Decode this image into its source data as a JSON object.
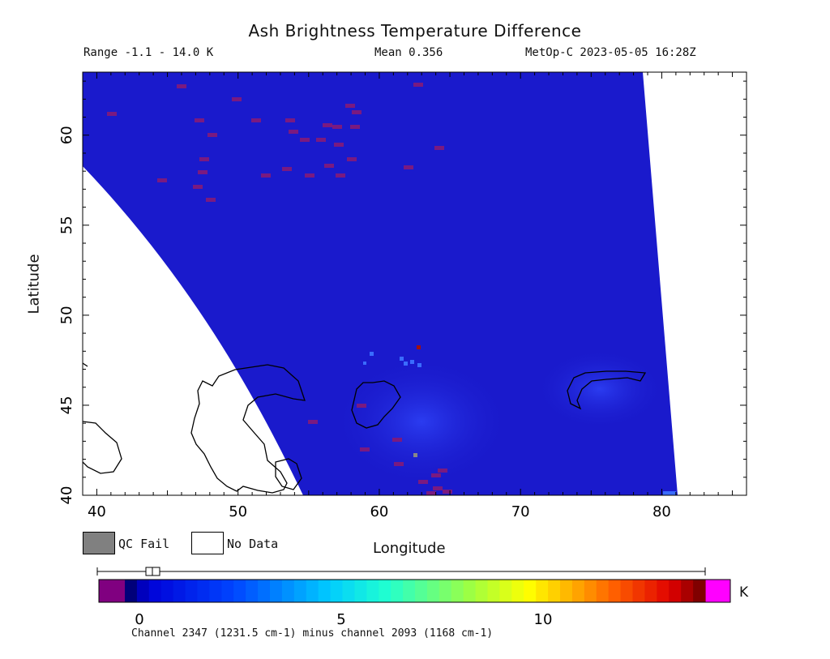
{
  "title": "Ash Brightness Temperature Difference",
  "stats": {
    "range": "Range -1.1 - 14.0 K",
    "mean": "Mean 0.356",
    "satellite": "MetOp-C 2023-05-05 16:28Z"
  },
  "axes": {
    "xlabel": "Longitude",
    "ylabel": "Latitude",
    "x_ticks": [
      "40",
      "50",
      "60",
      "70",
      "80"
    ],
    "y_ticks": [
      "60",
      "55",
      "50",
      "45",
      "40"
    ],
    "xlim": [
      39,
      86
    ],
    "ylim": [
      40,
      63.5
    ]
  },
  "legend": {
    "qc_fail": "QC Fail",
    "no_data": "No Data"
  },
  "colorbar": {
    "ticks": [
      "0",
      "5",
      "10"
    ],
    "min": -1.1,
    "max": 14.0,
    "unit": "K",
    "caption": "Channel 2347 (1231.5 cm-1) minus channel 2093 (1168 cm-1)"
  },
  "colors": {
    "background_field": "#1a1acc",
    "no_data": "#ffffff",
    "qc_fail": "#808080",
    "low_flag": "#800080",
    "high_flag": "#ff00ff"
  }
}
